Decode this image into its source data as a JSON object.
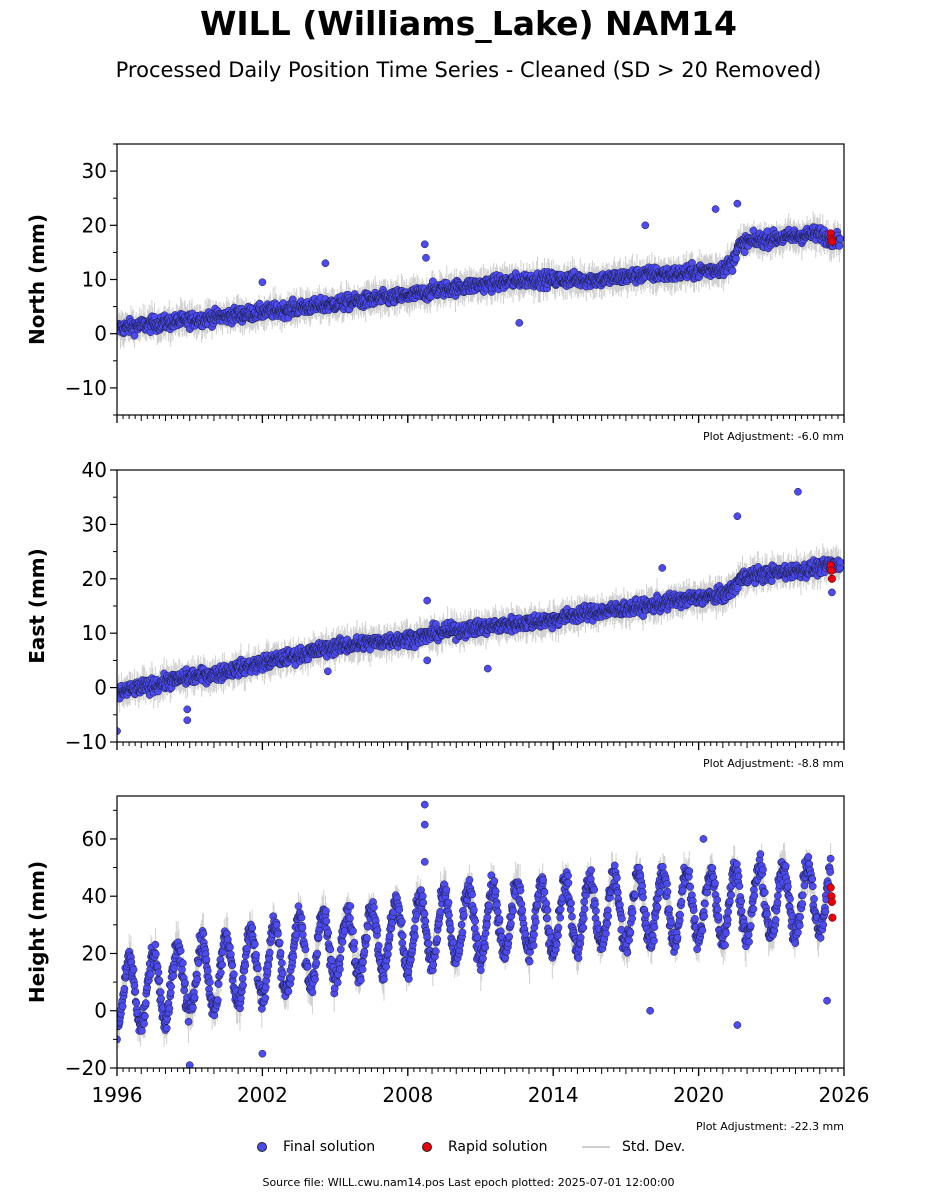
{
  "title": "WILL (Williams_Lake) NAM14",
  "subtitle": "Processed Daily Position Time Series - Cleaned (SD > 20 Removed)",
  "legend": {
    "final_label": "Final solution",
    "rapid_label": "Rapid solution",
    "std_label": "Std. Dev."
  },
  "source_text": "Source file: WILL.cwu.nam14.pos  Last epoch plotted: 2025-07-01 12:00:00",
  "colors": {
    "final": "#4b4bf0",
    "rapid": "#e8000b",
    "std_dev": "#c8c8c8",
    "axis": "#000000"
  },
  "chart_data": [
    {
      "type": "scatter",
      "ylabel": "North (mm)",
      "ylim": [
        -15,
        35
      ],
      "yticks": [
        -10,
        0,
        10,
        20,
        30
      ],
      "xlim": [
        1996,
        2026
      ],
      "xticks": [
        1996,
        2002,
        2008,
        2014,
        2020,
        2026
      ],
      "x_tick_labels_shown": false,
      "adjustment_text": "Plot Adjustment: -6.0 mm",
      "series": [
        {
          "name": "Final solution",
          "x": [
            1996.0,
            1997.0,
            1998.0,
            1999.0,
            2000.0,
            2001.0,
            2002.0,
            2003.0,
            2003.9,
            2004.1,
            2005.0,
            2006.0,
            2007.0,
            2008.0,
            2008.8,
            2009.0,
            2010.0,
            2011.0,
            2012.0,
            2013.0,
            2014.0,
            2015.0,
            2016.0,
            2017.0,
            2018.0,
            2019.0,
            2020.0,
            2021.0,
            2021.4,
            2021.6,
            2022.0,
            2023.0,
            2024.0,
            2025.0,
            2025.4
          ],
          "y": [
            1.0,
            1.5,
            2.0,
            2.5,
            3.0,
            3.5,
            4.0,
            4.5,
            5.0,
            5.0,
            5.5,
            6.0,
            6.5,
            7.0,
            7.5,
            8.0,
            8.5,
            9.0,
            9.5,
            10.0,
            10.0,
            10.0,
            10.0,
            10.5,
            11.0,
            11.0,
            11.5,
            12.0,
            13.0,
            16.0,
            17.0,
            17.5,
            18.0,
            18.5,
            17.5
          ],
          "outliers": [
            [
              2008.7,
              16.5
            ],
            [
              2008.75,
              14.0
            ],
            [
              2020.7,
              23.0
            ],
            [
              2021.6,
              24.0
            ],
            [
              2012.6,
              2.0
            ],
            [
              2017.8,
              20.0
            ],
            [
              2004.6,
              13.0
            ],
            [
              2002.0,
              9.5
            ]
          ]
        },
        {
          "name": "Rapid solution",
          "x": [
            2025.45,
            2025.48,
            2025.5
          ],
          "y": [
            18.5,
            17.5,
            17.0
          ]
        }
      ]
    },
    {
      "type": "scatter",
      "ylabel": "East (mm)",
      "ylim": [
        -10,
        40
      ],
      "yticks": [
        -10,
        0,
        10,
        20,
        30,
        40
      ],
      "xlim": [
        1996,
        2026
      ],
      "xticks": [
        1996,
        2002,
        2008,
        2014,
        2020,
        2026
      ],
      "x_tick_labels_shown": false,
      "adjustment_text": "Plot Adjustment: -8.8 mm",
      "series": [
        {
          "name": "Final solution",
          "x": [
            1996.0,
            1997.0,
            1998.0,
            1999.0,
            2000.0,
            2001.0,
            2002.0,
            2003.0,
            2004.0,
            2005.0,
            2006.0,
            2007.0,
            2008.0,
            2008.8,
            2009.0,
            2010.0,
            2011.0,
            2012.0,
            2013.0,
            2014.0,
            2015.0,
            2016.0,
            2017.0,
            2018.0,
            2019.0,
            2020.0,
            2021.0,
            2021.4,
            2021.7,
            2022.0,
            2023.0,
            2024.0,
            2025.0,
            2025.4
          ],
          "y": [
            -1.0,
            0.0,
            1.0,
            2.0,
            2.5,
            3.5,
            4.5,
            5.5,
            6.5,
            7.5,
            8.0,
            8.5,
            9.0,
            9.5,
            10.0,
            10.5,
            11.0,
            11.5,
            12.0,
            12.5,
            13.5,
            14.0,
            14.5,
            15.0,
            16.0,
            16.5,
            17.0,
            18.0,
            20.0,
            20.5,
            21.0,
            21.5,
            22.0,
            22.5
          ],
          "outliers": [
            [
              2024.1,
              36.0
            ],
            [
              2021.6,
              31.5
            ],
            [
              2008.8,
              16.0
            ],
            [
              2008.8,
              5.0
            ],
            [
              2011.3,
              3.5
            ],
            [
              1998.9,
              -4.0
            ],
            [
              1998.9,
              -6.0
            ],
            [
              1996.0,
              -8.0
            ],
            [
              2004.7,
              3.0
            ],
            [
              2018.5,
              22.0
            ],
            [
              2025.5,
              17.5
            ]
          ]
        },
        {
          "name": "Rapid solution",
          "x": [
            2025.45,
            2025.48,
            2025.5
          ],
          "y": [
            22.5,
            21.5,
            20.0
          ]
        }
      ]
    },
    {
      "type": "scatter",
      "ylabel": "Height (mm)",
      "ylim": [
        -20,
        75
      ],
      "yticks": [
        -20,
        0,
        20,
        40,
        60
      ],
      "xlim": [
        1996,
        2026
      ],
      "xticks": [
        1996,
        2002,
        2008,
        2014,
        2020,
        2026
      ],
      "x_tick_labels_shown": true,
      "adjustment_text": "Plot Adjustment: -22.3 mm",
      "series": [
        {
          "name": "Final solution",
          "x": [
            1996.0,
            1997.0,
            1998.0,
            1999.0,
            2000.0,
            2001.0,
            2002.0,
            2003.0,
            2004.0,
            2005.0,
            2006.0,
            2007.0,
            2008.0,
            2009.0,
            2010.0,
            2011.0,
            2012.0,
            2013.0,
            2014.0,
            2015.0,
            2016.0,
            2017.0,
            2018.0,
            2019.0,
            2020.0,
            2021.0,
            2022.0,
            2023.0,
            2024.0,
            2025.0
          ],
          "y": [
            5.0,
            7.0,
            9.0,
            11.0,
            13.0,
            15.0,
            17.0,
            19.0,
            21.0,
            22.5,
            24.0,
            25.5,
            27.0,
            28.5,
            29.5,
            30.5,
            31.5,
            32.0,
            33.0,
            33.5,
            34.5,
            35.0,
            35.5,
            36.0,
            36.5,
            37.0,
            37.5,
            38.0,
            38.5,
            39.0
          ],
          "seasonal_amplitude": 12,
          "outliers": [
            [
              2008.7,
              72.0
            ],
            [
              2008.7,
              65.0
            ],
            [
              2008.7,
              52.0
            ],
            [
              2018.0,
              0.0
            ],
            [
              2021.6,
              -5.0
            ],
            [
              2025.3,
              3.5
            ],
            [
              1999.0,
              -19.0
            ],
            [
              2002.0,
              -15.0
            ],
            [
              2020.2,
              60.0
            ]
          ]
        },
        {
          "name": "Rapid solution",
          "x": [
            2025.45,
            2025.48,
            2025.5,
            2025.52
          ],
          "y": [
            43.0,
            40.0,
            38.0,
            32.5
          ]
        }
      ]
    }
  ]
}
